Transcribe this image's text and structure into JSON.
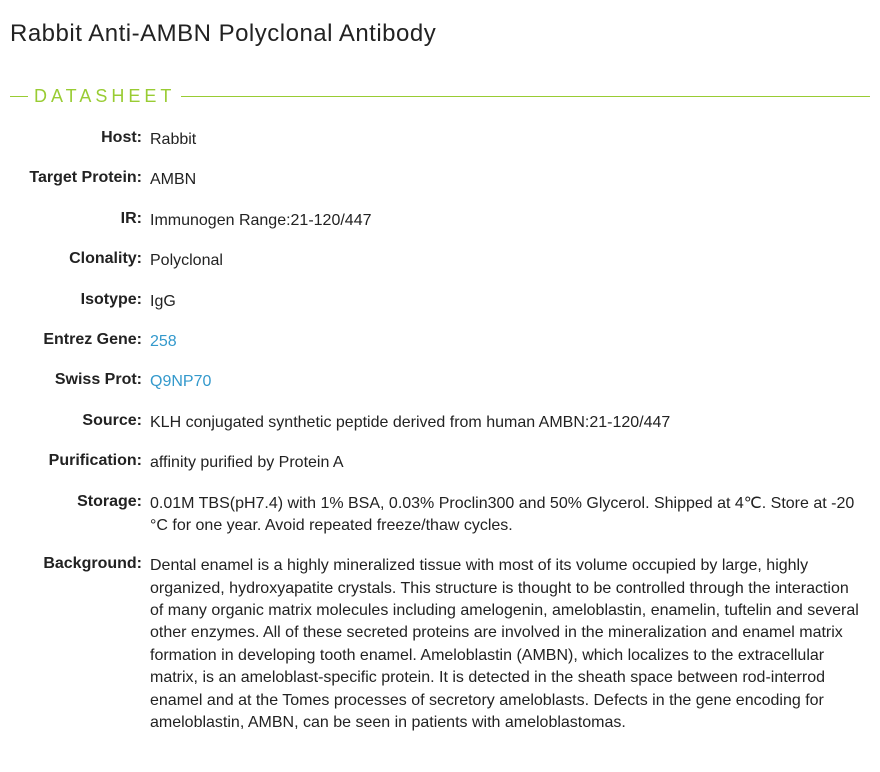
{
  "title": "Rabbit  Anti-AMBN Polyclonal Antibody",
  "section_header": "DATASHEET",
  "rows": {
    "host": {
      "label": "Host:",
      "value": "Rabbit"
    },
    "target_protein": {
      "label": "Target Protein:",
      "value": "AMBN"
    },
    "ir": {
      "label": "IR:",
      "value": "Immunogen Range:21-120/447"
    },
    "clonality": {
      "label": "Clonality:",
      "value": "Polyclonal"
    },
    "isotype": {
      "label": "Isotype:",
      "value": "IgG"
    },
    "entrez_gene": {
      "label": "Entrez Gene:",
      "value": "258"
    },
    "swiss_prot": {
      "label": "Swiss Prot:",
      "value": "Q9NP70"
    },
    "source": {
      "label": "Source:",
      "value": "KLH conjugated synthetic peptide derived from human AMBN:21-120/447"
    },
    "purification": {
      "label": "Purification:",
      "value": "affinity purified by Protein A"
    },
    "storage": {
      "label": "Storage:",
      "value": "0.01M TBS(pH7.4) with 1% BSA, 0.03% Proclin300 and 50% Glycerol. Shipped at 4℃. Store at -20 °C for one year. Avoid repeated freeze/thaw cycles."
    },
    "background": {
      "label": "Background:",
      "value": "Dental enamel is a highly mineralized tissue with most of its volume occupied by large, highly organized, hydroxyapatite crystals. This structure is thought to be controlled through the interaction of many organic matrix molecules including amelogenin, ameloblastin, enamelin, tuftelin and several other enzymes. All of these secreted proteins are involved in the mineralization and enamel matrix formation in developing tooth enamel. Ameloblastin (AMBN), which localizes to the extracellular matrix, is an ameloblast-specific protein. It is detected in the sheath space between rod-interrod enamel and at the Tomes processes of secretory ameloblasts. Defects in the gene encoding for ameloblastin, AMBN, can be seen in patients with ameloblastomas."
    }
  },
  "colors": {
    "accent": "#99cc33",
    "link": "#3399cc",
    "text": "#222222",
    "background": "#ffffff"
  }
}
